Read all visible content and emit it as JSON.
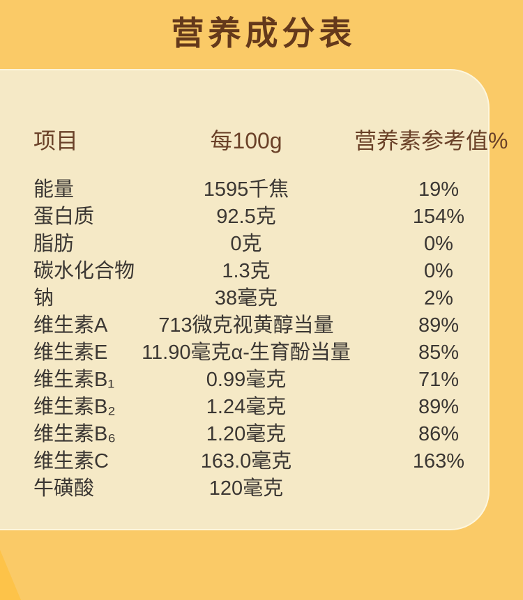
{
  "page": {
    "title": "营养成分表"
  },
  "table": {
    "headers": [
      "项目",
      "每100g",
      "营养素参考值%"
    ],
    "rows": [
      {
        "item": "能量",
        "per100g": "1595千焦",
        "nrv": "19%"
      },
      {
        "item": "蛋白质",
        "per100g": "92.5克",
        "nrv": "154%"
      },
      {
        "item": "脂肪",
        "per100g": "0克",
        "nrv": "0%"
      },
      {
        "item": "碳水化合物",
        "per100g": "1.3克",
        "nrv": "0%"
      },
      {
        "item": "钠",
        "per100g": "38毫克",
        "nrv": "2%"
      },
      {
        "item": "维生素A",
        "per100g": "713微克视黄醇当量",
        "nrv": "89%"
      },
      {
        "item": "维生素E",
        "per100g": "11.90毫克α-生育酚当量",
        "nrv": "85%"
      },
      {
        "item": "维生素B₁",
        "per100g": "0.99毫克",
        "nrv": "71%"
      },
      {
        "item": "维生素B₂",
        "per100g": "1.24毫克",
        "nrv": "89%"
      },
      {
        "item": "维生素B₆",
        "per100g": "1.20毫克",
        "nrv": "86%"
      },
      {
        "item": "维生素C",
        "per100g": "163.0毫克",
        "nrv": "163%"
      },
      {
        "item": "牛磺酸",
        "per100g": "120毫克",
        "nrv": ""
      }
    ]
  },
  "colors": {
    "background": "#FACA67",
    "accent_wedge": "#FDC349",
    "card_background": "#F5E9C6",
    "card_border": "#FFF9E4",
    "title_text": "#64391B",
    "header_text": "#6A4128",
    "body_text": "#3B3733"
  }
}
